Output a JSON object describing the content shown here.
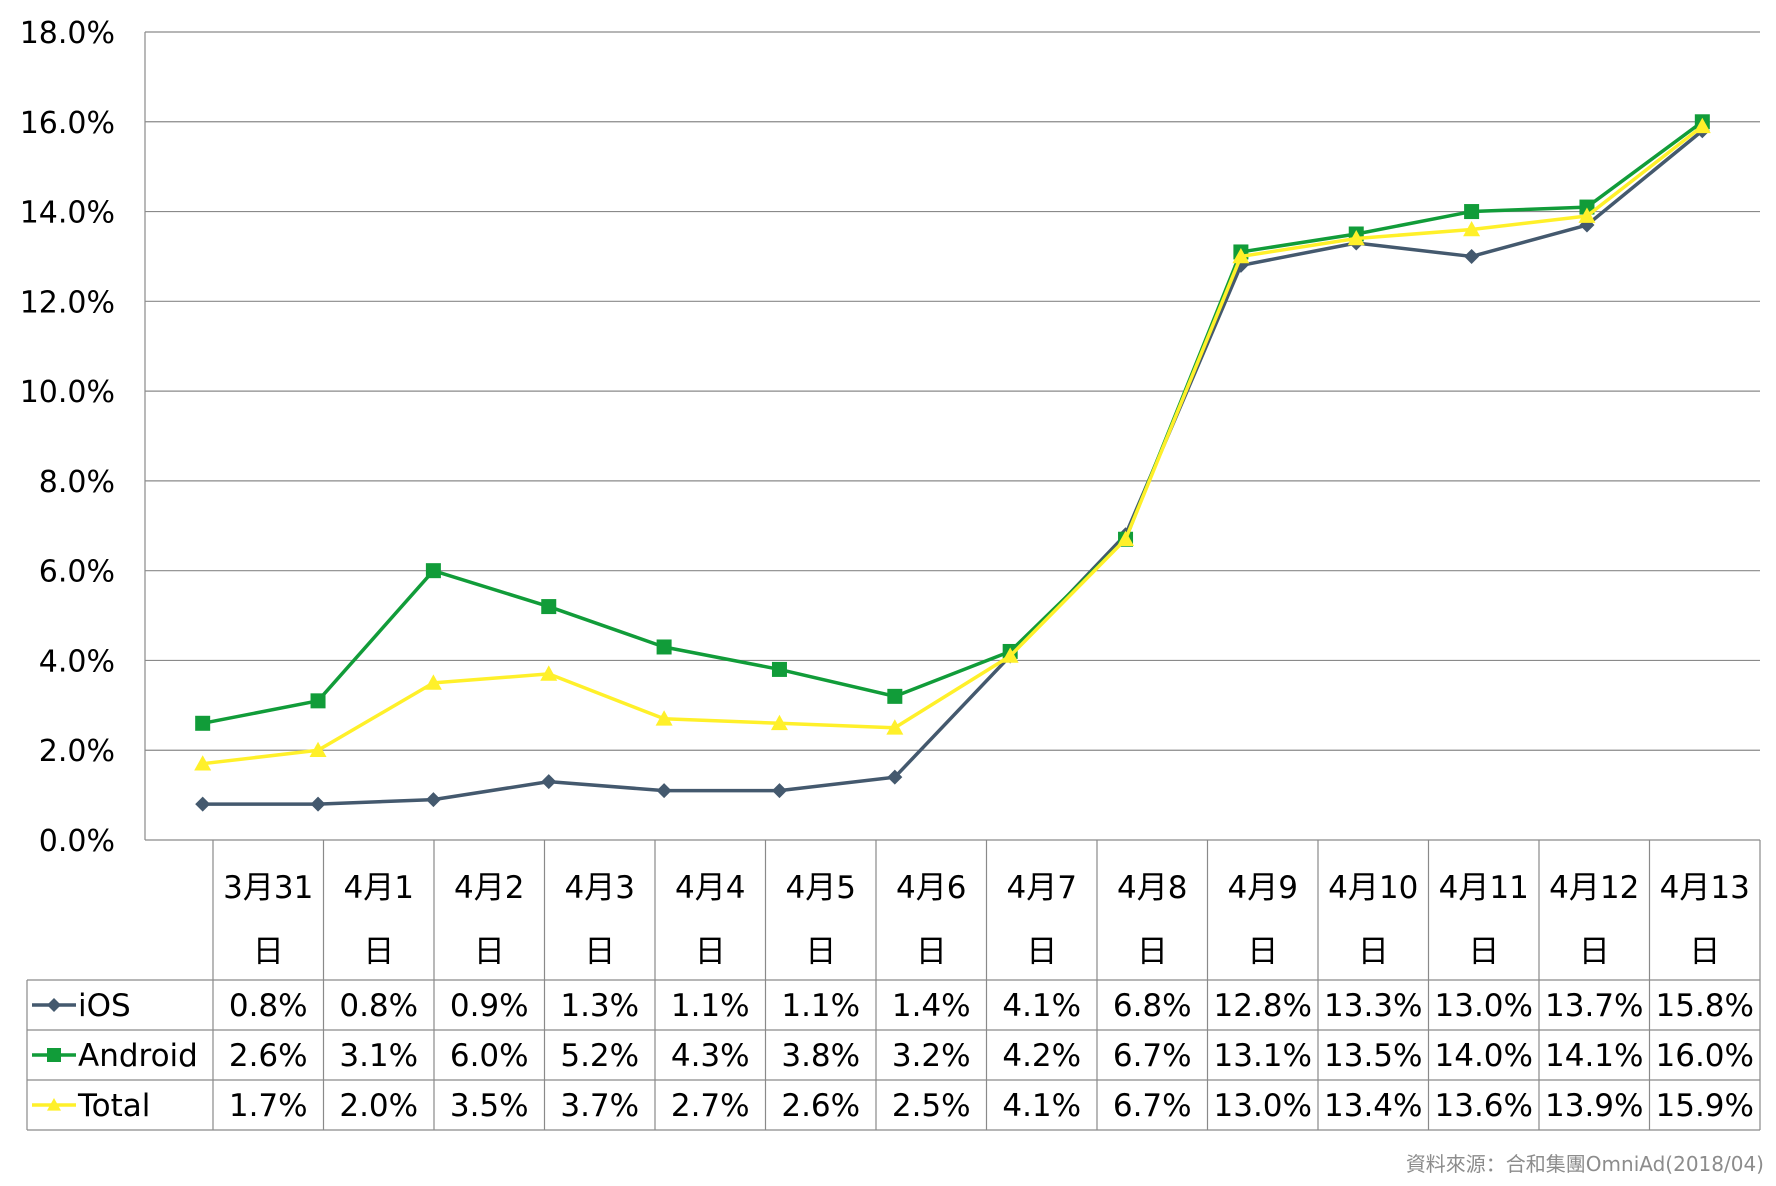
{
  "chart_data": {
    "type": "line",
    "categories": [
      [
        "3月31",
        "日"
      ],
      [
        "4月1",
        "日"
      ],
      [
        "4月2",
        "日"
      ],
      [
        "4月3",
        "日"
      ],
      [
        "4月4",
        "日"
      ],
      [
        "4月5",
        "日"
      ],
      [
        "4月6",
        "日"
      ],
      [
        "4月7",
        "日"
      ],
      [
        "4月8",
        "日"
      ],
      [
        "4月9",
        "日"
      ],
      [
        "4月10",
        "日"
      ],
      [
        "4月11",
        "日"
      ],
      [
        "4月12",
        "日"
      ],
      [
        "4月13",
        "日"
      ]
    ],
    "ylim": [
      0,
      18
    ],
    "yticks": [
      "0.0%",
      "2.0%",
      "4.0%",
      "6.0%",
      "8.0%",
      "10.0%",
      "12.0%",
      "14.0%",
      "16.0%",
      "18.0%"
    ],
    "grid": true,
    "series": [
      {
        "name": "iOS",
        "color": "#44596e",
        "marker": "diamond",
        "values": [
          0.8,
          0.8,
          0.9,
          1.3,
          1.1,
          1.1,
          1.4,
          4.1,
          6.8,
          12.8,
          13.3,
          13.0,
          13.7,
          15.8
        ],
        "labels": [
          "0.8%",
          "0.8%",
          "0.9%",
          "1.3%",
          "1.1%",
          "1.1%",
          "1.4%",
          "4.1%",
          "6.8%",
          "12.8%",
          "13.3%",
          "13.0%",
          "13.7%",
          "15.8%"
        ]
      },
      {
        "name": "Android",
        "color": "#119c39",
        "marker": "square",
        "values": [
          2.6,
          3.1,
          6.0,
          5.2,
          4.3,
          3.8,
          3.2,
          4.2,
          6.7,
          13.1,
          13.5,
          14.0,
          14.1,
          16.0
        ],
        "labels": [
          "2.6%",
          "3.1%",
          "6.0%",
          "5.2%",
          "4.3%",
          "3.8%",
          "3.2%",
          "4.2%",
          "6.7%",
          "13.1%",
          "13.5%",
          "14.0%",
          "14.1%",
          "16.0%"
        ]
      },
      {
        "name": "Total",
        "color": "#fff02a",
        "marker": "triangle",
        "values": [
          1.7,
          2.0,
          3.5,
          3.7,
          2.7,
          2.6,
          2.5,
          4.1,
          6.7,
          13.0,
          13.4,
          13.6,
          13.9,
          15.9
        ],
        "labels": [
          "1.7%",
          "2.0%",
          "3.5%",
          "3.7%",
          "2.7%",
          "2.6%",
          "2.5%",
          "4.1%",
          "6.7%",
          "13.0%",
          "13.4%",
          "13.6%",
          "13.9%",
          "15.9%"
        ]
      }
    ],
    "source": "資料來源：合和集團OmniAd(2018/04)"
  }
}
